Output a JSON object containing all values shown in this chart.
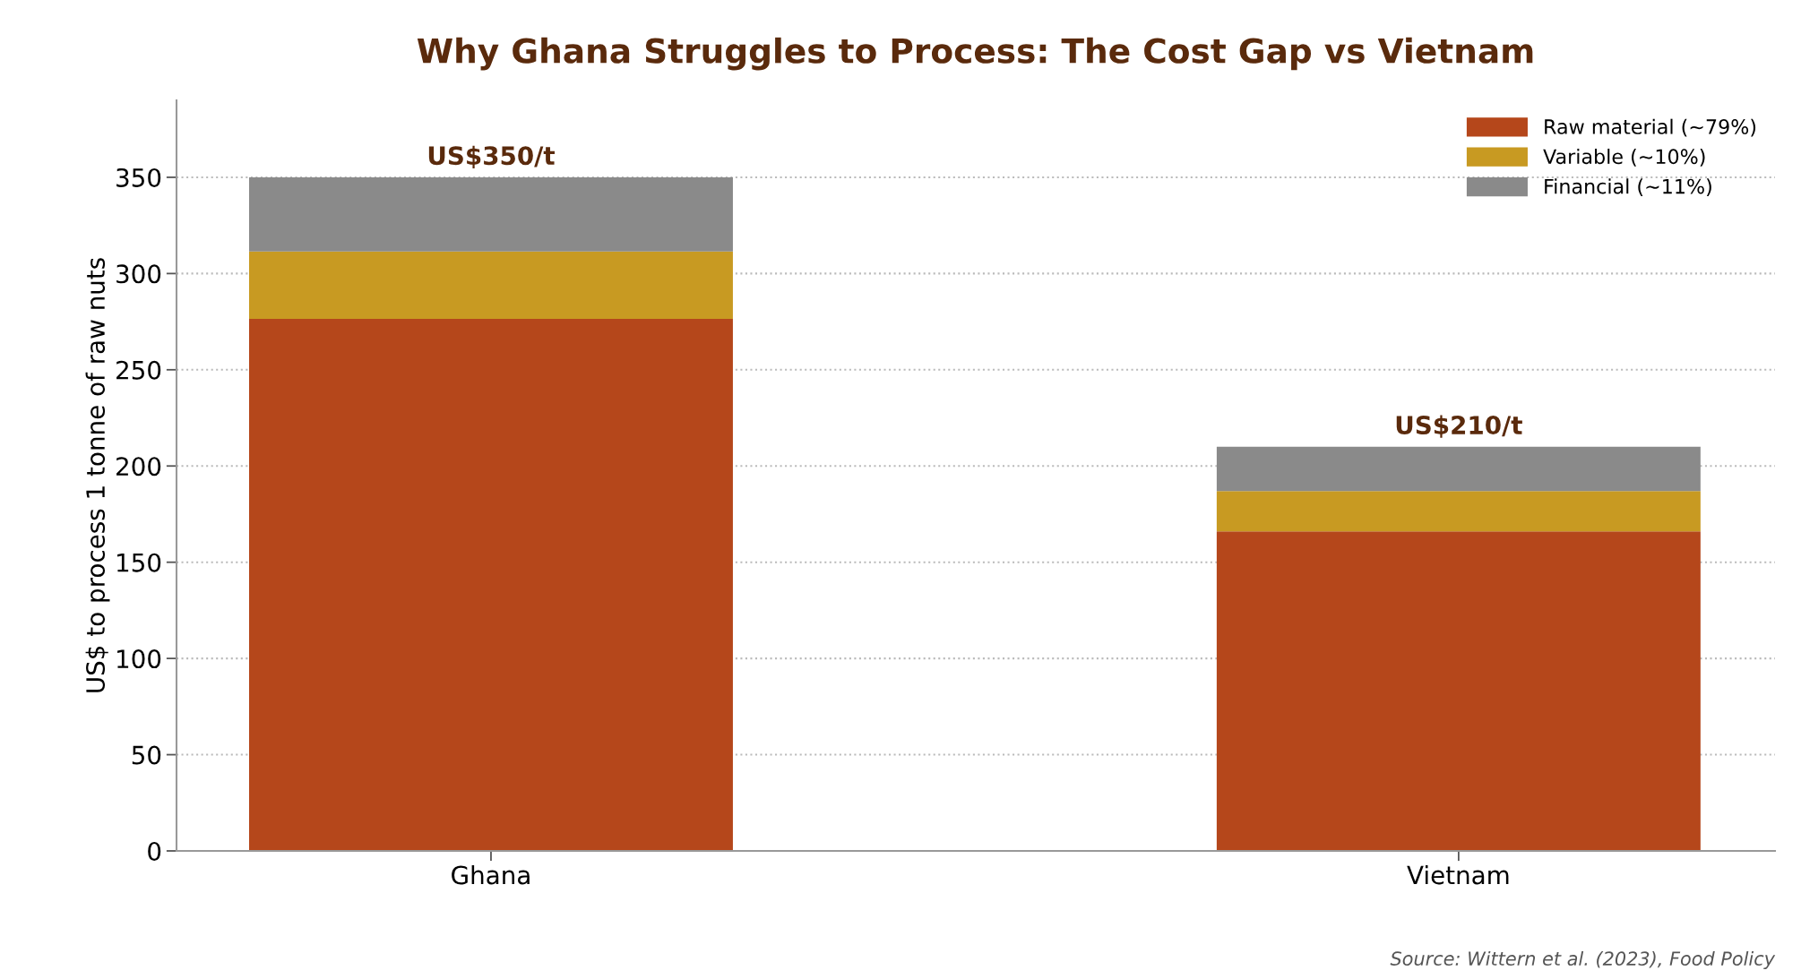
{
  "chart_data": {
    "type": "bar",
    "title": "Why Ghana Struggles to Process: The Cost Gap vs Vietnam",
    "ylabel": "US$ to process 1 tonne of raw nuts",
    "categories": [
      "Ghana",
      "Vietnam"
    ],
    "stacked": true,
    "series": [
      {
        "name": "Raw material (~79%)",
        "color": "#b5471b",
        "values": [
          276.5,
          166
        ]
      },
      {
        "name": "Variable (~10%)",
        "color": "#c89a22",
        "values": [
          35,
          21
        ]
      },
      {
        "name": "Financial (~11%)",
        "color": "#8a8a8a",
        "values": [
          38.5,
          23
        ]
      }
    ],
    "totals": [
      "US$350/t",
      "US$210/t"
    ],
    "ylim": [
      0,
      390
    ],
    "yticks": [
      0,
      50,
      100,
      150,
      200,
      250,
      300,
      350
    ],
    "grid": "y",
    "legend": "top right",
    "annotations": [
      "Source: Wittern et al. (2023), Food Policy"
    ]
  }
}
